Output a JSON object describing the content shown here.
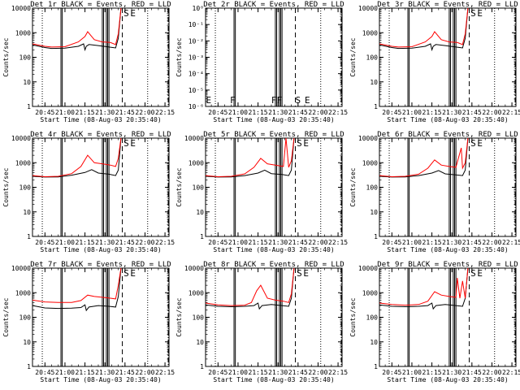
{
  "figure": {
    "xlabel": "Start Time (08-Aug-03 20:35:40)",
    "ylabel": "Counts/sec",
    "x_tick_labels": [
      "20:45",
      "21:00",
      "21:15",
      "21:30",
      "21:45",
      "22:00",
      "22:15"
    ],
    "y_tick_labels_log": [
      "1",
      "10",
      "100",
      "1000",
      "10000"
    ],
    "y_tick_labels_tiny": [
      "10⁰",
      "10⁻¹",
      "10⁻²",
      "10⁻³",
      "10⁻⁴",
      "10⁻⁵",
      "10⁻⁶"
    ]
  },
  "colors": {
    "events": "#000000",
    "lld": "#ff0000"
  },
  "chart_data": [
    {
      "id": "det1",
      "type": "line",
      "title": "Det 1r BLACK = Events, RED = LLD",
      "xlabel": "Start Time (08-Aug-03 20:35:40)",
      "ylabel": "Counts/sec",
      "yscale": "log",
      "xlim": [
        "20:35:40",
        "22:18"
      ],
      "ylim": [
        1,
        10000
      ],
      "series": [
        {
          "name": "Events",
          "color": "#000000",
          "x": [
            "20:35",
            "20:45",
            "20:50",
            "21:00",
            "21:10",
            "21:14",
            "21:15",
            "21:16",
            "21:18",
            "21:25",
            "21:33",
            "21:38",
            "21:40",
            "21:42"
          ],
          "values": [
            320,
            250,
            230,
            235,
            280,
            350,
            200,
            280,
            330,
            300,
            260,
            240,
            600,
            10000
          ]
        },
        {
          "name": "LLD",
          "color": "#ff0000",
          "x": [
            "20:35",
            "20:45",
            "20:50",
            "21:00",
            "21:10",
            "21:15",
            "21:17",
            "21:22",
            "21:28",
            "21:34",
            "21:38",
            "21:40",
            "21:42"
          ],
          "values": [
            350,
            280,
            260,
            270,
            420,
            700,
            1100,
            520,
            420,
            400,
            330,
            900,
            10000
          ]
        }
      ],
      "markers": [
        {
          "label": "S",
          "x": "21:46"
        },
        {
          "label": "E",
          "x": "21:51"
        }
      ]
    },
    {
      "id": "det2",
      "type": "line",
      "title": "Det 2r BLACK = Events, RED = LLD",
      "xlabel": "Start Time (08-Aug-03 20:35:40)",
      "ylabel": "Counts/sec",
      "yscale": "log",
      "xlim": [
        "20:35:40",
        "22:18"
      ],
      "ylim": [
        1e-06,
        1
      ],
      "series": [],
      "markers": [
        {
          "label": "E",
          "x": "20:38"
        },
        {
          "label": "F",
          "x": "20:56"
        },
        {
          "label": "FF",
          "x": "21:29"
        },
        {
          "label": "S",
          "x": "21:45"
        },
        {
          "label": "E",
          "x": "21:52"
        }
      ]
    },
    {
      "id": "det3",
      "type": "line",
      "title": "Det 3r BLACK = Events, RED = LLD",
      "xlabel": "Start Time (08-Aug-03 20:35:40)",
      "ylabel": "Counts/sec",
      "yscale": "log",
      "xlim": [
        "20:35:40",
        "22:18"
      ],
      "ylim": [
        1,
        10000
      ],
      "series": [
        {
          "name": "Events",
          "color": "#000000",
          "x": [
            "20:35",
            "20:45",
            "20:50",
            "21:00",
            "21:10",
            "21:14",
            "21:15",
            "21:16",
            "21:18",
            "21:25",
            "21:33",
            "21:38",
            "21:40",
            "21:42"
          ],
          "values": [
            320,
            250,
            230,
            235,
            280,
            350,
            200,
            280,
            330,
            300,
            260,
            240,
            600,
            10000
          ]
        },
        {
          "name": "LLD",
          "color": "#ff0000",
          "x": [
            "20:35",
            "20:45",
            "20:50",
            "21:00",
            "21:10",
            "21:15",
            "21:17",
            "21:22",
            "21:28",
            "21:34",
            "21:38",
            "21:40",
            "21:42"
          ],
          "values": [
            350,
            280,
            260,
            270,
            420,
            700,
            1100,
            520,
            420,
            400,
            330,
            900,
            10000
          ]
        }
      ],
      "markers": [
        {
          "label": "S",
          "x": "21:46"
        },
        {
          "label": "E",
          "x": "21:51"
        }
      ]
    },
    {
      "id": "det4",
      "type": "line",
      "title": "Det 4r BLACK = Events, RED = LLD",
      "xlabel": "Start Time (08-Aug-03 20:35:40)",
      "ylabel": "Counts/sec",
      "yscale": "log",
      "xlim": [
        "20:35:40",
        "22:18"
      ],
      "ylim": [
        1,
        10000
      ],
      "series": [
        {
          "name": "Events",
          "color": "#000000",
          "x": [
            "20:35",
            "20:45",
            "20:55",
            "21:05",
            "21:15",
            "21:20",
            "21:25",
            "21:33",
            "21:38",
            "21:40",
            "21:42"
          ],
          "values": [
            280,
            260,
            265,
            310,
            400,
            520,
            380,
            340,
            300,
            500,
            10000
          ]
        },
        {
          "name": "LLD",
          "color": "#ff0000",
          "x": [
            "20:35",
            "20:45",
            "20:55",
            "21:05",
            "21:12",
            "21:17",
            "21:22",
            "21:28",
            "21:34",
            "21:38",
            "21:40",
            "21:42"
          ],
          "values": [
            300,
            270,
            280,
            360,
            700,
            2000,
            1000,
            900,
            800,
            700,
            1500,
            10000
          ]
        }
      ],
      "markers": [
        {
          "label": "S",
          "x": "21:46"
        },
        {
          "label": "E",
          "x": "21:51"
        }
      ]
    },
    {
      "id": "det5",
      "type": "line",
      "title": "Det 5r BLACK = Events, RED = LLD",
      "xlabel": "Start Time (08-Aug-03 20:35:40)",
      "ylabel": "Counts/sec",
      "yscale": "log",
      "xlim": [
        "20:35:40",
        "22:18"
      ],
      "ylim": [
        1,
        10000
      ],
      "series": [
        {
          "name": "Events",
          "color": "#000000",
          "x": [
            "20:35",
            "20:45",
            "20:55",
            "21:05",
            "21:15",
            "21:20",
            "21:25",
            "21:33",
            "21:38",
            "21:40",
            "21:42"
          ],
          "values": [
            280,
            260,
            265,
            300,
            380,
            500,
            360,
            330,
            300,
            500,
            10000
          ]
        },
        {
          "name": "LLD",
          "color": "#ff0000",
          "x": [
            "20:35",
            "20:45",
            "20:55",
            "21:05",
            "21:12",
            "21:17",
            "21:22",
            "21:28",
            "21:34",
            "21:36",
            "21:38",
            "21:40",
            "21:42"
          ],
          "values": [
            300,
            270,
            280,
            350,
            650,
            1500,
            900,
            800,
            700,
            10000,
            650,
            1200,
            10000
          ]
        }
      ],
      "markers": [
        {
          "label": "S",
          "x": "21:46"
        },
        {
          "label": "E",
          "x": "21:51"
        }
      ]
    },
    {
      "id": "det6",
      "type": "line",
      "title": "Det 6r BLACK = Events, RED = LLD",
      "xlabel": "Start Time (08-Aug-03 20:35:40)",
      "ylabel": "Counts/sec",
      "yscale": "log",
      "xlim": [
        "20:35:40",
        "22:18"
      ],
      "ylim": [
        1,
        10000
      ],
      "series": [
        {
          "name": "Events",
          "color": "#000000",
          "x": [
            "20:35",
            "20:45",
            "20:55",
            "21:05",
            "21:15",
            "21:20",
            "21:25",
            "21:33",
            "21:38",
            "21:40",
            "21:42"
          ],
          "values": [
            280,
            260,
            265,
            300,
            380,
            480,
            350,
            320,
            300,
            500,
            10000
          ]
        },
        {
          "name": "LLD",
          "color": "#ff0000",
          "x": [
            "20:35",
            "20:45",
            "20:55",
            "21:05",
            "21:12",
            "21:17",
            "21:22",
            "21:28",
            "21:33",
            "21:37",
            "21:38",
            "21:40",
            "21:42"
          ],
          "values": [
            300,
            270,
            280,
            340,
            600,
            1300,
            800,
            700,
            650,
            4000,
            600,
            1000,
            10000
          ]
        }
      ],
      "markers": [
        {
          "label": "S",
          "x": "21:46"
        },
        {
          "label": "E",
          "x": "21:51"
        }
      ]
    },
    {
      "id": "det7",
      "type": "line",
      "title": "Det 7r BLACK = Events, RED = LLD",
      "xlabel": "Start Time (08-Aug-03 20:35:40)",
      "ylabel": "Counts/sec",
      "yscale": "log",
      "xlim": [
        "20:35:40",
        "22:18"
      ],
      "ylim": [
        1,
        10000
      ],
      "series": [
        {
          "name": "Events",
          "color": "#000000",
          "x": [
            "20:35",
            "20:45",
            "20:55",
            "21:05",
            "21:12",
            "21:15",
            "21:16",
            "21:18",
            "21:25",
            "21:33",
            "21:38",
            "21:40",
            "21:42"
          ],
          "values": [
            300,
            240,
            230,
            235,
            250,
            320,
            190,
            260,
            300,
            280,
            260,
            700,
            10000
          ]
        },
        {
          "name": "LLD",
          "color": "#ff0000",
          "x": [
            "20:35",
            "20:45",
            "20:55",
            "21:05",
            "21:12",
            "21:17",
            "21:22",
            "21:28",
            "21:34",
            "21:38",
            "21:40",
            "21:42"
          ],
          "values": [
            500,
            420,
            400,
            400,
            480,
            800,
            700,
            650,
            600,
            560,
            2000,
            10000
          ]
        }
      ],
      "markers": [
        {
          "label": "S",
          "x": "21:46"
        },
        {
          "label": "E",
          "x": "21:51"
        }
      ]
    },
    {
      "id": "det8",
      "type": "line",
      "title": "Det 8r BLACK = Events, RED = LLD",
      "xlabel": "Start Time (08-Aug-03 20:35:40)",
      "ylabel": "Counts/sec",
      "yscale": "log",
      "xlim": [
        "20:35:40",
        "22:18"
      ],
      "ylim": [
        1,
        10000
      ],
      "series": [
        {
          "name": "Events",
          "color": "#000000",
          "x": [
            "20:35",
            "20:45",
            "20:55",
            "21:05",
            "21:12",
            "21:15",
            "21:16",
            "21:18",
            "21:25",
            "21:33",
            "21:38",
            "21:40",
            "21:42"
          ],
          "values": [
            320,
            280,
            270,
            280,
            300,
            380,
            220,
            300,
            330,
            300,
            280,
            600,
            10000
          ]
        },
        {
          "name": "LLD",
          "color": "#ff0000",
          "x": [
            "20:35",
            "20:45",
            "20:55",
            "21:05",
            "21:10",
            "21:14",
            "21:17",
            "21:22",
            "21:28",
            "21:34",
            "21:38",
            "21:40",
            "21:42"
          ],
          "values": [
            380,
            320,
            300,
            310,
            400,
            1200,
            2000,
            600,
            500,
            450,
            400,
            900,
            10000
          ]
        }
      ],
      "markers": [
        {
          "label": "S",
          "x": "21:46"
        },
        {
          "label": "E",
          "x": "21:51"
        }
      ]
    },
    {
      "id": "det9",
      "type": "line",
      "title": "Det 9r BLACK = Events, RED = LLD",
      "xlabel": "Start Time (08-Aug-03 20:35:40)",
      "ylabel": "Counts/sec",
      "yscale": "log",
      "xlim": [
        "20:35:40",
        "22:18"
      ],
      "ylim": [
        1,
        10000
      ],
      "series": [
        {
          "name": "Events",
          "color": "#000000",
          "x": [
            "20:35",
            "20:45",
            "20:55",
            "21:05",
            "21:12",
            "21:15",
            "21:16",
            "21:18",
            "21:25",
            "21:33",
            "21:38",
            "21:40",
            "21:42"
          ],
          "values": [
            320,
            280,
            270,
            280,
            300,
            380,
            220,
            300,
            330,
            300,
            280,
            600,
            10000
          ]
        },
        {
          "name": "LLD",
          "color": "#ff0000",
          "x": [
            "20:35",
            "20:45",
            "20:55",
            "21:05",
            "21:12",
            "21:17",
            "21:22",
            "21:28",
            "21:33",
            "21:34",
            "21:36",
            "21:38",
            "21:40",
            "21:42"
          ],
          "values": [
            380,
            330,
            310,
            330,
            450,
            1100,
            800,
            700,
            650,
            4000,
            600,
            3000,
            600,
            10000
          ]
        }
      ],
      "markers": [
        {
          "label": "S",
          "x": "21:46"
        },
        {
          "label": "E",
          "x": "21:51"
        }
      ]
    }
  ]
}
